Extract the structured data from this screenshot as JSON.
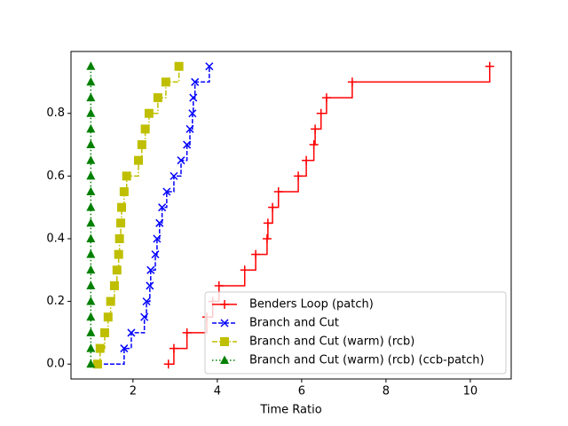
{
  "chart_data": {
    "type": "step",
    "drawstyle": "steps-post",
    "xlabel": "Time Ratio",
    "xlim": [
      0.53,
      10.97
    ],
    "ylim": [
      -0.0475,
      0.9975
    ],
    "xticks": [
      2,
      4,
      6,
      8,
      10
    ],
    "yticks": [
      {
        "value": 0,
        "label": "0.0"
      },
      0.2,
      0.4,
      0.6,
      0.8
    ],
    "legend": "lower right",
    "series": [
      {
        "name": "Benders Loop (patch)",
        "color": "#ff0000",
        "marker": "plus",
        "linestyle": "solid",
        "x": [
          2.84,
          2.97,
          3.28,
          3.75,
          3.89,
          4.04,
          4.65,
          4.91,
          5.18,
          5.2,
          5.31,
          5.45,
          5.92,
          6.11,
          6.29,
          6.32,
          6.46,
          6.59,
          7.2,
          10.46
        ],
        "values": [
          0,
          0.05,
          0.1,
          0.15,
          0.2,
          0.25,
          0.3,
          0.35,
          0.4,
          0.45,
          0.5,
          0.55,
          0.6,
          0.65,
          0.7,
          0.75,
          0.8,
          0.85,
          0.9,
          0.95
        ]
      },
      {
        "name": "Branch and Cut",
        "color": "#0000ff",
        "marker": "x",
        "linestyle": "dashed",
        "x": [
          1.16,
          1.79,
          1.96,
          2.27,
          2.32,
          2.4,
          2.42,
          2.53,
          2.57,
          2.63,
          2.69,
          2.8,
          2.97,
          3.14,
          3.28,
          3.35,
          3.41,
          3.43,
          3.47,
          3.81
        ],
        "values": [
          0,
          0.05,
          0.1,
          0.15,
          0.2,
          0.25,
          0.3,
          0.35,
          0.4,
          0.45,
          0.5,
          0.55,
          0.6,
          0.65,
          0.7,
          0.75,
          0.8,
          0.85,
          0.9,
          0.95
        ]
      },
      {
        "name": "Branch and Cut (warm) (rcb)",
        "color": "#bfbf00",
        "marker": "square",
        "linestyle": "dashdot",
        "x": [
          1.16,
          1.22,
          1.33,
          1.41,
          1.47,
          1.56,
          1.62,
          1.66,
          1.68,
          1.71,
          1.73,
          1.79,
          1.85,
          2.13,
          2.21,
          2.29,
          2.38,
          2.59,
          2.78,
          3.09
        ],
        "values": [
          0,
          0.05,
          0.1,
          0.15,
          0.2,
          0.25,
          0.3,
          0.35,
          0.4,
          0.45,
          0.5,
          0.55,
          0.6,
          0.65,
          0.7,
          0.75,
          0.8,
          0.85,
          0.9,
          0.95
        ]
      },
      {
        "name": "Branch and Cut (warm) (rcb) (ccb-patch)",
        "color": "#008000",
        "marker": "triangle",
        "linestyle": "dotted",
        "x": [
          1,
          1,
          1,
          1,
          1,
          1,
          1,
          1,
          1,
          1,
          1,
          1,
          1,
          1,
          1,
          1,
          1,
          1,
          1,
          1
        ],
        "values": [
          0,
          0.05,
          0.1,
          0.15,
          0.2,
          0.25,
          0.3,
          0.35,
          0.4,
          0.45,
          0.5,
          0.55,
          0.6,
          0.65,
          0.7,
          0.75,
          0.8,
          0.85,
          0.9,
          0.95
        ]
      }
    ]
  }
}
